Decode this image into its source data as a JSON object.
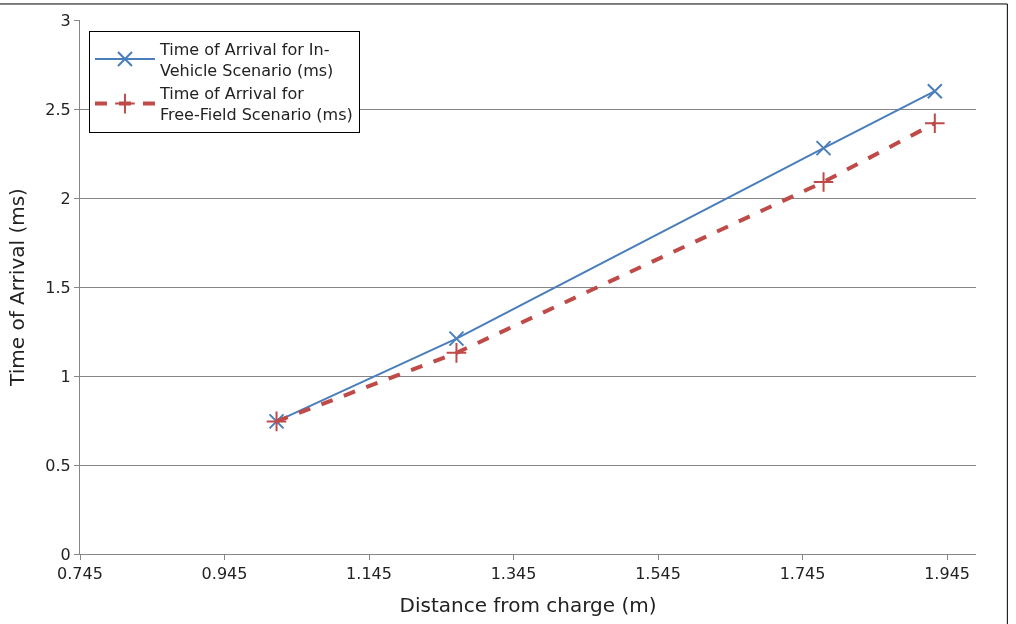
{
  "chart_data": {
    "type": "line",
    "xlabel": "Distance from charge (m)",
    "ylabel": "Time of Arrival (ms)",
    "xlim": [
      0.745,
      1.985
    ],
    "xticks": [
      {
        "value": 0.745,
        "label": "0.745"
      },
      {
        "value": 0.945,
        "label": "0.945"
      },
      {
        "value": 1.145,
        "label": "1.145"
      },
      {
        "value": 1.345,
        "label": "1.345"
      },
      {
        "value": 1.545,
        "label": "1.545"
      },
      {
        "value": 1.745,
        "label": "1.745"
      },
      {
        "value": 1.945,
        "label": "1.945"
      }
    ],
    "ylim": [
      0,
      3
    ],
    "yticks": [
      0,
      0.5,
      1,
      1.5,
      2,
      2.5,
      3
    ],
    "grid": "y",
    "legend": "top left",
    "series": [
      {
        "name": "Time of Arrival for In-Vehicle Scenario (ms)",
        "color": "#4a7ebb",
        "x": [
          1.017,
          1.266,
          1.774,
          1.928
        ],
        "values": [
          0.745,
          1.21,
          2.28,
          2.6
        ],
        "marker": "cross",
        "line_style": "solid"
      },
      {
        "name": "Time of Arrival for Free-Field Scenario (ms)",
        "color": "#be4b48",
        "x": [
          1.017,
          1.266,
          1.774,
          1.928
        ],
        "values": [
          0.745,
          1.13,
          2.09,
          2.42
        ],
        "marker": "plus",
        "line_style": "dashed"
      }
    ]
  }
}
